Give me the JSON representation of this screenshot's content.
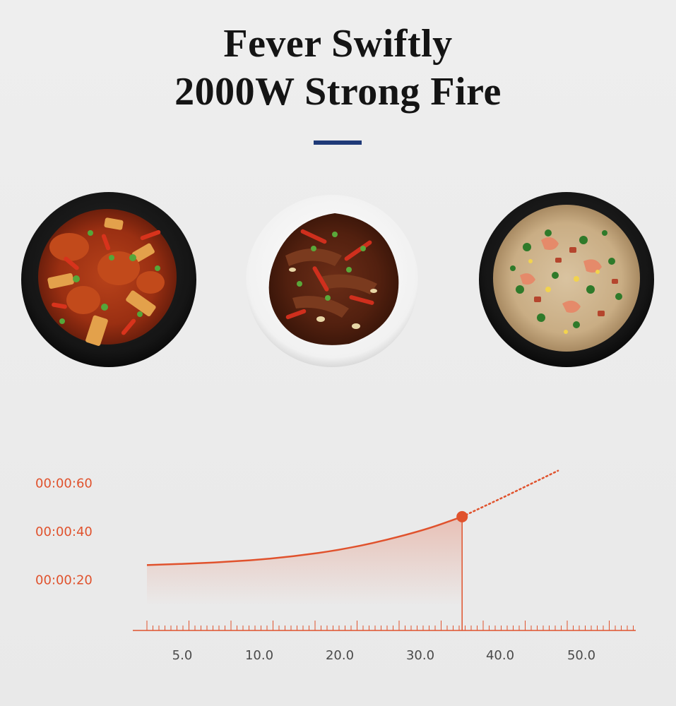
{
  "headline": {
    "line1": "Fever Swiftly",
    "line2": "2000W Strong Fire",
    "rule_color": "#1f3a78"
  },
  "dishes": [
    {
      "plate": "black",
      "food": "spicy chicken with peppers and potato"
    },
    {
      "plate": "white",
      "food": "stir-fried beef with chili and garlic"
    },
    {
      "plate": "black",
      "food": "fried rice with shrimp and vegetables"
    }
  ],
  "chart_data": {
    "type": "area",
    "accent_color": "#e0522d",
    "xlabel": "",
    "ylabel": "",
    "x_ticks": [
      "5.0",
      "10.0",
      "20.0",
      "30.0",
      "40.0",
      "50.0"
    ],
    "y_ticks": [
      "00:00:20",
      "00:00:40",
      "00:00:60"
    ],
    "ylim": [
      0,
      70
    ],
    "series": [
      {
        "style": "solid-with-fill",
        "points": [
          [
            0,
            27
          ],
          [
            1,
            28
          ],
          [
            2,
            30
          ],
          [
            3,
            34
          ],
          [
            4,
            41
          ],
          [
            4.6,
            47
          ]
        ]
      },
      {
        "style": "dotted",
        "points": [
          [
            4.6,
            47
          ],
          [
            5.2,
            55
          ],
          [
            6.0,
            66
          ]
        ]
      }
    ],
    "highlight_point": [
      4.6,
      47
    ],
    "grid": false,
    "legend": "none"
  }
}
